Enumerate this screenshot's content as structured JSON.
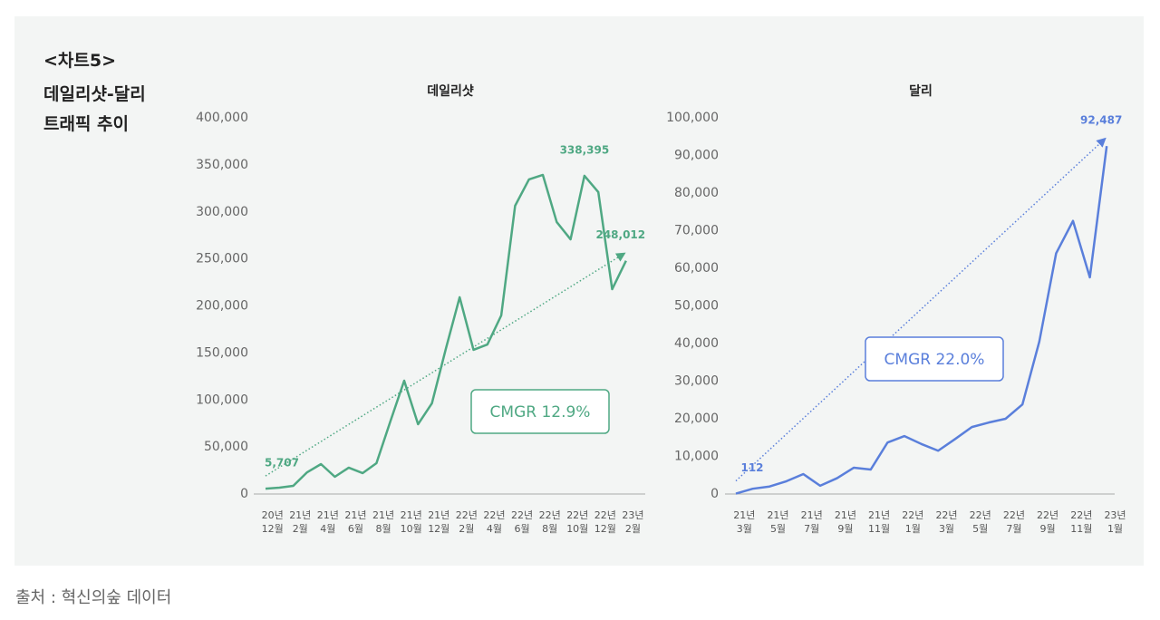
{
  "header": {
    "label": "<차트5>",
    "title": "데일리샷-달리\n트래픽 추이"
  },
  "source": "출처 : 혁신의숲 데이터",
  "chart_data": [
    {
      "type": "line",
      "title": "데일리샷",
      "color": "#4fa883",
      "categories": [
        "20년\n12월",
        null,
        "21년\n2월",
        null,
        "21년\n4월",
        null,
        "21년\n6월",
        null,
        "21년\n8월",
        null,
        "21년\n10월",
        null,
        "21년\n12월",
        null,
        "22년\n2월",
        null,
        "22년\n4월",
        null,
        "22년\n6월",
        null,
        "22년\n8월",
        null,
        "22년\n10월",
        null,
        "22년\n12월",
        null,
        "23년\n2월"
      ],
      "values": [
        5707,
        6700,
        8700,
        23100,
        31800,
        18300,
        28000,
        22200,
        32800,
        77100,
        120500,
        74200,
        96400,
        154200,
        209200,
        153300,
        159000,
        189900,
        306500,
        334500,
        339300,
        289200,
        270800,
        338395,
        321000,
        217800,
        248012
      ],
      "value_labels": [
        "5,707",
        null,
        null,
        null,
        null,
        null,
        null,
        null,
        null,
        null,
        null,
        null,
        null,
        null,
        null,
        null,
        null,
        null,
        null,
        null,
        null,
        null,
        null,
        "338,395",
        null,
        null,
        "248,012"
      ],
      "annotation": "CMGR 12.9%",
      "ylim": [
        0,
        400000
      ],
      "yticks": [
        0,
        {
          "value": 50000,
          "label": "50,000"
        },
        {
          "value": 100000,
          "label": "100,000"
        },
        {
          "value": 150000,
          "label": "150,000"
        },
        {
          "value": 200000,
          "label": "200,000"
        },
        {
          "value": 250000,
          "label": "250,000"
        },
        {
          "value": 300000,
          "label": "300,000"
        },
        {
          "value": 350000,
          "label": "350,000"
        },
        {
          "value": 400000,
          "label": "400,000"
        }
      ]
    },
    {
      "type": "line",
      "title": "달리",
      "color": "#5a7fdb",
      "categories": [
        "21년\n3월",
        null,
        "21년\n5월",
        null,
        "21년\n7월",
        null,
        "21년\n9월",
        null,
        "21년\n11월",
        null,
        "22년\n1월",
        null,
        "22년\n3월",
        null,
        "22년\n5월",
        null,
        "22년\n7월",
        null,
        "22년\n9월",
        null,
        "22년\n11월",
        null,
        "23년\n1월"
      ],
      "values": [
        112,
        1400,
        2000,
        3400,
        5300,
        2200,
        4200,
        7000,
        6500,
        13700,
        15400,
        13300,
        11500,
        14600,
        17800,
        19000,
        20000,
        23800,
        40500,
        64000,
        72600,
        57600,
        92487
      ],
      "value_labels": [
        "112",
        null,
        null,
        null,
        null,
        null,
        null,
        null,
        null,
        null,
        null,
        null,
        null,
        null,
        null,
        null,
        null,
        null,
        null,
        null,
        null,
        null,
        "92,487"
      ],
      "annotation": "CMGR 22.0%",
      "ylim": [
        0,
        100000
      ],
      "yticks": [
        0,
        {
          "value": 10000,
          "label": "10,000"
        },
        {
          "value": 20000,
          "label": "20,000"
        },
        {
          "value": 30000,
          "label": "30,000"
        },
        {
          "value": 40000,
          "label": "40,000"
        },
        {
          "value": 50000,
          "label": "50,000"
        },
        {
          "value": 60000,
          "label": "60,000"
        },
        {
          "value": 70000,
          "label": "70,000"
        },
        {
          "value": 80000,
          "label": "80,000"
        },
        {
          "value": 90000,
          "label": "90,000"
        },
        {
          "value": 100000,
          "label": "100,000"
        }
      ]
    }
  ]
}
